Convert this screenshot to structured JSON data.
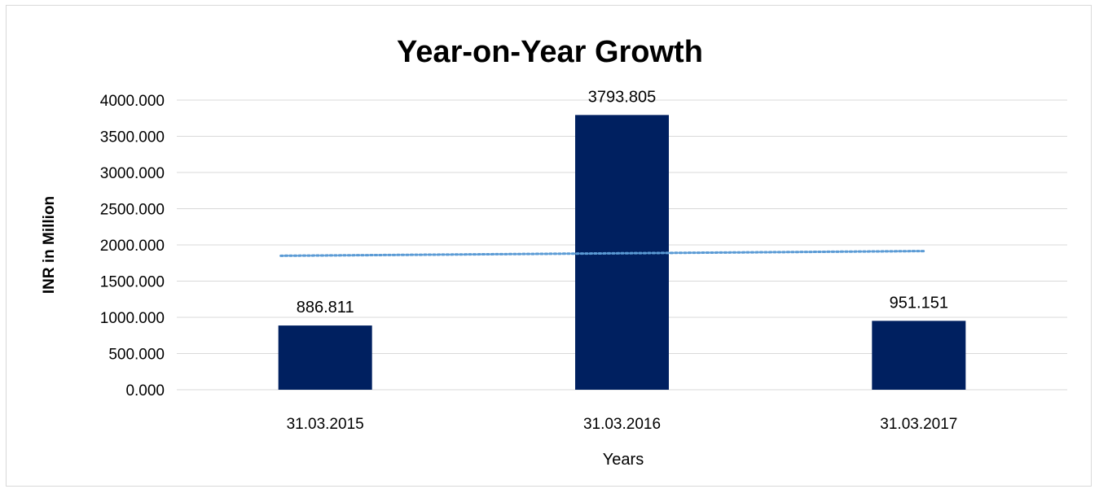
{
  "chart_data": {
    "type": "bar",
    "title": "Year-on-Year Growth",
    "xlabel": "Years",
    "ylabel": "INR in Million",
    "categories": [
      "31.03.2015",
      "31.03.2016",
      "31.03.2017"
    ],
    "values": [
      886.811,
      3793.805,
      951.151
    ],
    "value_labels": [
      "886.811",
      "3793.805",
      "951.151"
    ],
    "ylim": [
      0,
      4000
    ],
    "y_ticks": [
      0,
      500,
      1000,
      1500,
      2000,
      2500,
      3000,
      3500,
      4000
    ],
    "y_tick_labels": [
      "0.000",
      "500.000",
      "1000.000",
      "1500.000",
      "2000.000",
      "2500.000",
      "3000.000",
      "3500.000",
      "4000.000"
    ],
    "trendline": {
      "type": "linear",
      "style": "dotted",
      "color": "#5b9bd5",
      "start_value": 1850,
      "end_value": 1915
    },
    "bar_color": "#002060",
    "grid": true,
    "gridline_color": "#d9d9d9",
    "legend": "none"
  }
}
